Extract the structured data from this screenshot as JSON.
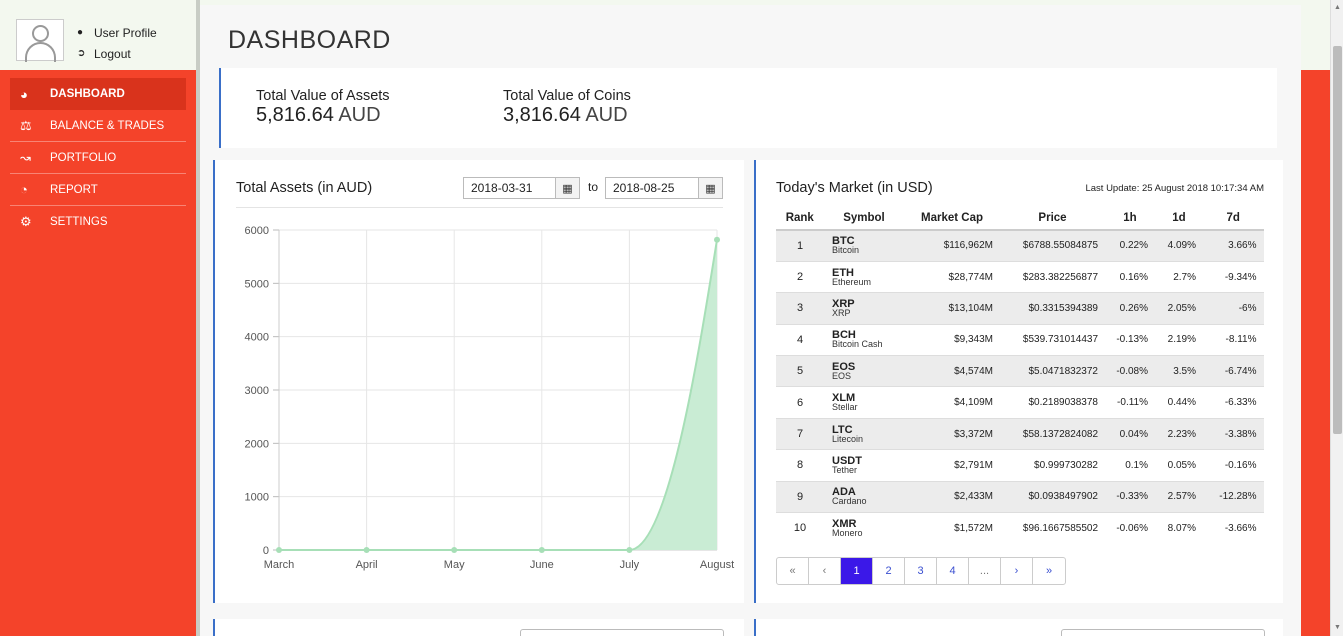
{
  "user": {
    "profile_label": "User Profile",
    "logout_label": "Logout"
  },
  "sidebar": {
    "items": [
      {
        "label": "DASHBOARD",
        "icon": "dashboard-icon"
      },
      {
        "label": "BALANCE & TRADES",
        "icon": "balance-scale-icon"
      },
      {
        "label": "PORTFOLIO",
        "icon": "line-chart-icon"
      },
      {
        "label": "REPORT",
        "icon": "pie-chart-icon"
      },
      {
        "label": "SETTINGS",
        "icon": "gear-icon"
      }
    ]
  },
  "page": {
    "title": "DASHBOARD"
  },
  "summary": {
    "assets_label": "Total Value of Assets",
    "assets_value": "5,816.64",
    "assets_unit": "AUD",
    "coins_label": "Total Value of Coins",
    "coins_value": "3,816.64",
    "coins_unit": "AUD"
  },
  "assets_panel": {
    "title": "Total Assets (in AUD)",
    "from_date": "2018-03-31",
    "to_label": "to",
    "to_date": "2018-08-25"
  },
  "chart_data": {
    "type": "area",
    "title": "Total Assets (in AUD)",
    "categories": [
      "March",
      "April",
      "May",
      "June",
      "July",
      "August"
    ],
    "values": [
      0,
      0,
      0,
      0,
      0,
      5817
    ],
    "ylim": [
      0,
      6000
    ],
    "yticks": [
      "6000",
      "5000",
      "4000",
      "3000",
      "2000",
      "1000",
      "0"
    ],
    "grid": true,
    "fill_color": "#c9ecd4",
    "line_color": "#a7dfb7"
  },
  "market": {
    "title": "Today's Market (in USD)",
    "last_update": "Last Update: 25 August 2018 10:17:34 AM",
    "columns": [
      "Rank",
      "Symbol",
      "Market Cap",
      "Price",
      "1h",
      "1d",
      "7d"
    ],
    "rows": [
      {
        "rank": "1",
        "sym": "BTC",
        "name": "Bitcoin",
        "cap": "$116,962M",
        "price": "$6788.55084875",
        "h1": "0.22%",
        "d1": "4.09%",
        "d7": "3.66%"
      },
      {
        "rank": "2",
        "sym": "ETH",
        "name": "Ethereum",
        "cap": "$28,774M",
        "price": "$283.382256877",
        "h1": "0.16%",
        "d1": "2.7%",
        "d7": "-9.34%"
      },
      {
        "rank": "3",
        "sym": "XRP",
        "name": "XRP",
        "cap": "$13,104M",
        "price": "$0.3315394389",
        "h1": "0.26%",
        "d1": "2.05%",
        "d7": "-6%"
      },
      {
        "rank": "4",
        "sym": "BCH",
        "name": "Bitcoin Cash",
        "cap": "$9,343M",
        "price": "$539.731014437",
        "h1": "-0.13%",
        "d1": "2.19%",
        "d7": "-8.11%"
      },
      {
        "rank": "5",
        "sym": "EOS",
        "name": "EOS",
        "cap": "$4,574M",
        "price": "$5.0471832372",
        "h1": "-0.08%",
        "d1": "3.5%",
        "d7": "-6.74%"
      },
      {
        "rank": "6",
        "sym": "XLM",
        "name": "Stellar",
        "cap": "$4,109M",
        "price": "$0.2189038378",
        "h1": "-0.11%",
        "d1": "0.44%",
        "d7": "-6.33%"
      },
      {
        "rank": "7",
        "sym": "LTC",
        "name": "Litecoin",
        "cap": "$3,372M",
        "price": "$58.1372824082",
        "h1": "0.04%",
        "d1": "2.23%",
        "d7": "-3.38%"
      },
      {
        "rank": "8",
        "sym": "USDT",
        "name": "Tether",
        "cap": "$2,791M",
        "price": "$0.999730282",
        "h1": "0.1%",
        "d1": "0.05%",
        "d7": "-0.16%"
      },
      {
        "rank": "9",
        "sym": "ADA",
        "name": "Cardano",
        "cap": "$2,433M",
        "price": "$0.0938497902",
        "h1": "-0.33%",
        "d1": "2.57%",
        "d7": "-12.28%"
      },
      {
        "rank": "10",
        "sym": "XMR",
        "name": "Monero",
        "cap": "$1,572M",
        "price": "$96.1667585502",
        "h1": "-0.06%",
        "d1": "8.07%",
        "d7": "-3.66%"
      }
    ]
  },
  "pagination": {
    "items": [
      "«",
      "‹",
      "1",
      "2",
      "3",
      "4",
      "...",
      "›",
      "»"
    ],
    "active": "1"
  }
}
